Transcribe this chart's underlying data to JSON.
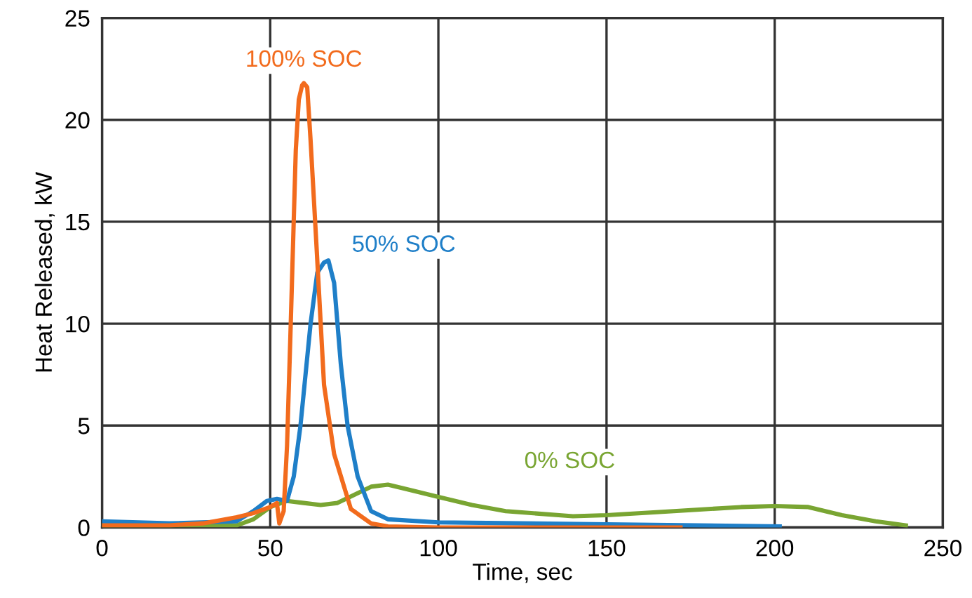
{
  "chart_data": {
    "type": "line",
    "xlabel": "Time, sec",
    "ylabel": "Heat Released, kW",
    "xlim": [
      0,
      250
    ],
    "xticks": [
      0,
      50,
      100,
      150,
      200,
      250
    ],
    "ylim": [
      0,
      25
    ],
    "yticks": [
      0,
      5,
      10,
      15,
      20,
      25
    ],
    "grid": true,
    "legend": false,
    "marker": "none",
    "line_style": "solid",
    "series": [
      {
        "name": "100% SOC",
        "color": "#f26b1d",
        "x": [
          0,
          20,
          30,
          40,
          45,
          50,
          52,
          52.7,
          54,
          55,
          56,
          57.6,
          58.5,
          59.5,
          60,
          61,
          62,
          63.7,
          66,
          69,
          74,
          80,
          85,
          100,
          172
        ],
        "values": [
          0.1,
          0.1,
          0.2,
          0.5,
          0.7,
          1.0,
          1.2,
          0.2,
          0.8,
          4,
          9.4,
          18.5,
          21,
          21.7,
          21.8,
          21.6,
          19,
          14,
          7,
          3.6,
          0.9,
          0.2,
          0.05,
          0,
          0
        ]
      },
      {
        "name": "50% SOC",
        "color": "#1f7fc8",
        "x": [
          0,
          20,
          40,
          45,
          49,
          52,
          55,
          57,
          59,
          62,
          64,
          66,
          67.3,
          69,
          71,
          73,
          76,
          80,
          85,
          100,
          150,
          201.5
        ],
        "values": [
          0.3,
          0.2,
          0.3,
          0.8,
          1.3,
          1.4,
          1.3,
          2.5,
          5,
          10,
          12.5,
          13.0,
          13.1,
          12,
          8,
          5,
          2.5,
          0.8,
          0.4,
          0.25,
          0.15,
          0.05
        ]
      },
      {
        "name": "0% SOC",
        "color": "#79a532",
        "x": [
          0,
          40,
          45,
          50,
          55,
          60,
          65,
          70,
          75,
          80,
          85,
          90,
          100,
          110,
          120,
          140,
          150,
          170,
          190,
          200,
          210,
          220,
          230,
          239
        ],
        "values": [
          0.1,
          0.1,
          0.4,
          1.0,
          1.3,
          1.2,
          1.1,
          1.2,
          1.6,
          2.0,
          2.1,
          1.9,
          1.5,
          1.1,
          0.8,
          0.55,
          0.6,
          0.8,
          1.0,
          1.05,
          1.0,
          0.6,
          0.3,
          0.1
        ]
      }
    ]
  }
}
